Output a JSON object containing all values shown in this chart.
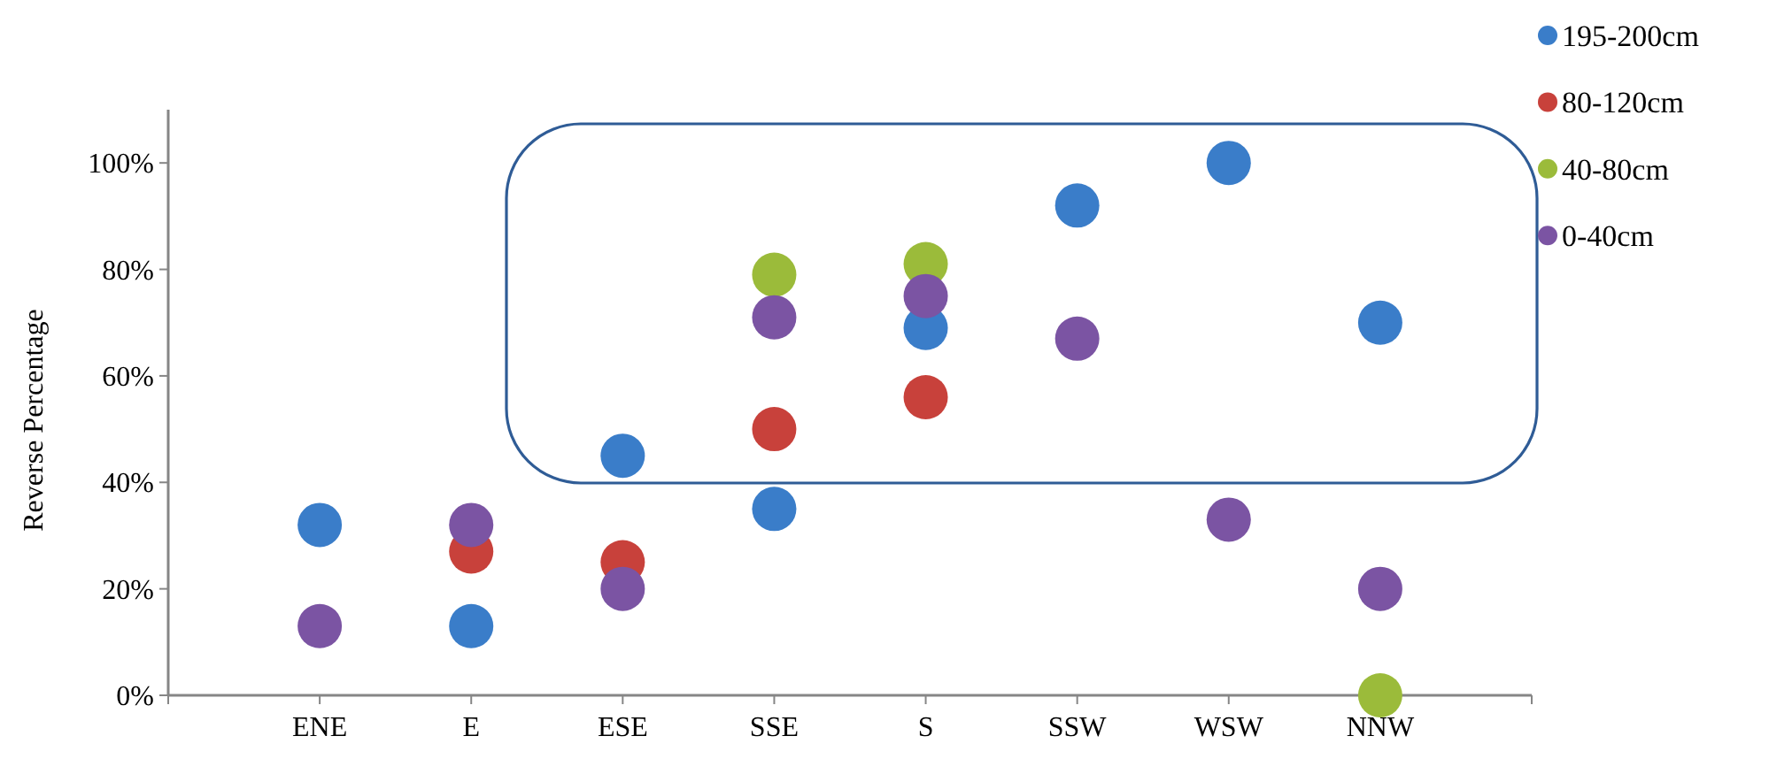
{
  "chart_data": {
    "type": "scatter",
    "ylabel": "Reverse Percentage",
    "categories": [
      "ENE",
      "E",
      "ESE",
      "SSE",
      "S",
      "SSW",
      "WSW",
      "NNW"
    ],
    "ylim": [
      0,
      110
    ],
    "yticks": [
      {
        "value": 0,
        "label": "0%"
      },
      {
        "value": 20,
        "label": "20%"
      },
      {
        "value": 40,
        "label": "40%"
      },
      {
        "value": 60,
        "label": "60%"
      },
      {
        "value": 80,
        "label": "80%"
      },
      {
        "value": 100,
        "label": "100%"
      }
    ],
    "grid": false,
    "legend": "right",
    "marker": "circle",
    "series": [
      {
        "name": "195-200cm",
        "color": "#3a7dc9",
        "values": [
          32,
          13,
          45,
          35,
          69,
          92,
          100,
          70
        ]
      },
      {
        "name": "80-120cm",
        "color": "#c8413b",
        "values": [
          null,
          27,
          25,
          50,
          56,
          null,
          null,
          null
        ]
      },
      {
        "name": "40-80cm",
        "color": "#9bbb3a",
        "values": [
          null,
          null,
          null,
          79,
          81,
          null,
          null,
          0
        ]
      },
      {
        "name": "0-40cm",
        "color": "#7b54a3",
        "values": [
          13,
          32,
          20,
          71,
          75,
          67,
          33,
          20
        ]
      }
    ]
  }
}
